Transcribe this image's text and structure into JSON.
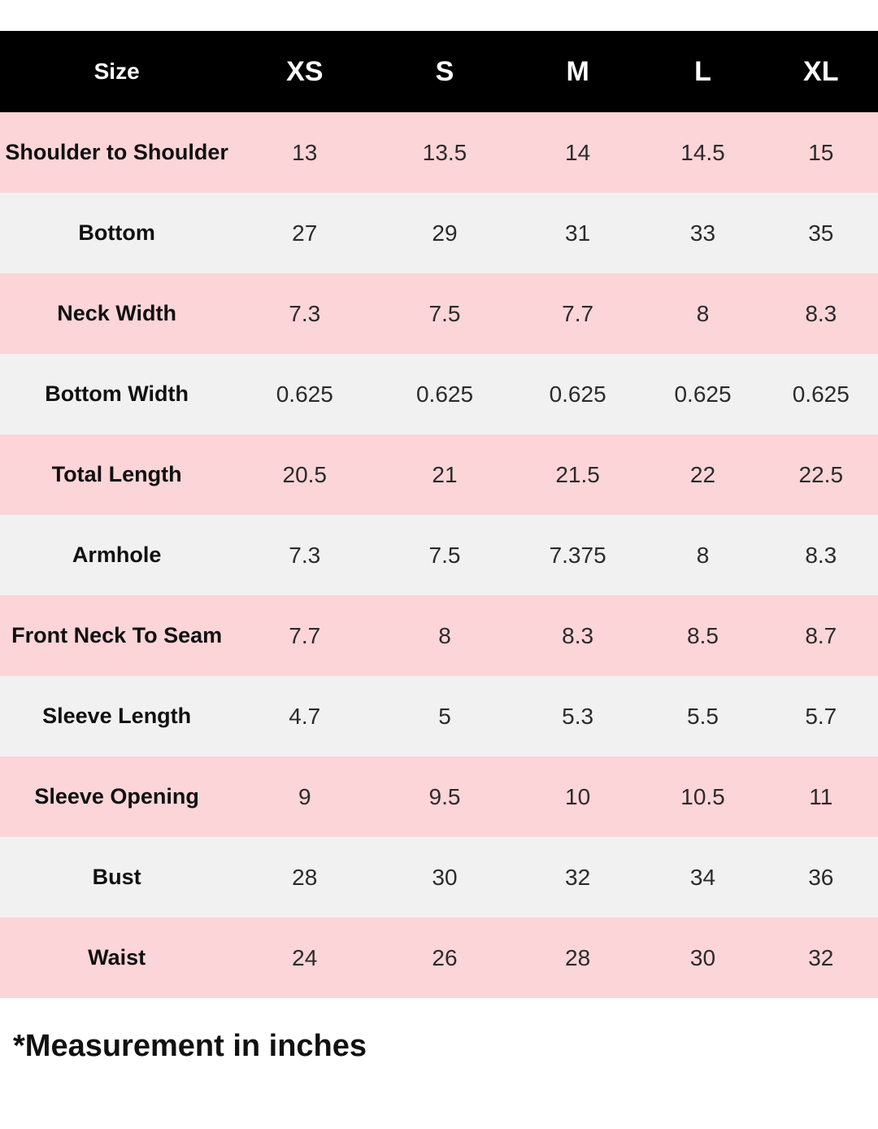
{
  "table": {
    "header": [
      "Size",
      "XS",
      "S",
      "M",
      "L",
      "XL"
    ],
    "rows": [
      {
        "label": "Shoulder to Shoulder",
        "values": [
          "13",
          "13.5",
          "14",
          "14.5",
          "15"
        ]
      },
      {
        "label": "Bottom",
        "values": [
          "27",
          "29",
          "31",
          "33",
          "35"
        ]
      },
      {
        "label": "Neck Width",
        "values": [
          "7.3",
          "7.5",
          "7.7",
          "8",
          "8.3"
        ]
      },
      {
        "label": "Bottom Width",
        "values": [
          "0.625",
          "0.625",
          "0.625",
          "0.625",
          "0.625"
        ]
      },
      {
        "label": "Total Length",
        "values": [
          "20.5",
          "21",
          "21.5",
          "22",
          "22.5"
        ]
      },
      {
        "label": "Armhole",
        "values": [
          "7.3",
          "7.5",
          "7.375",
          "8",
          "8.3"
        ]
      },
      {
        "label": "Front Neck To Seam",
        "values": [
          "7.7",
          "8",
          "8.3",
          "8.5",
          "8.7"
        ]
      },
      {
        "label": "Sleeve Length",
        "values": [
          "4.7",
          "5",
          "5.3",
          "5.5",
          "5.7"
        ]
      },
      {
        "label": "Sleeve Opening",
        "values": [
          "9",
          "9.5",
          "10",
          "10.5",
          "11"
        ]
      },
      {
        "label": "Bust",
        "values": [
          "28",
          "30",
          "32",
          "34",
          "36"
        ]
      },
      {
        "label": "Waist",
        "values": [
          "24",
          "26",
          "28",
          "30",
          "32"
        ]
      }
    ]
  },
  "footer": {
    "note": "*Measurement in inches"
  },
  "colors": {
    "header_bg": "#000000",
    "header_text": "#ffffff",
    "row_pink": "#fcd5d8",
    "row_gray": "#f2f1f1",
    "label_text": "#111111",
    "value_text": "#2b2b2b",
    "page_bg": "#ffffff"
  }
}
